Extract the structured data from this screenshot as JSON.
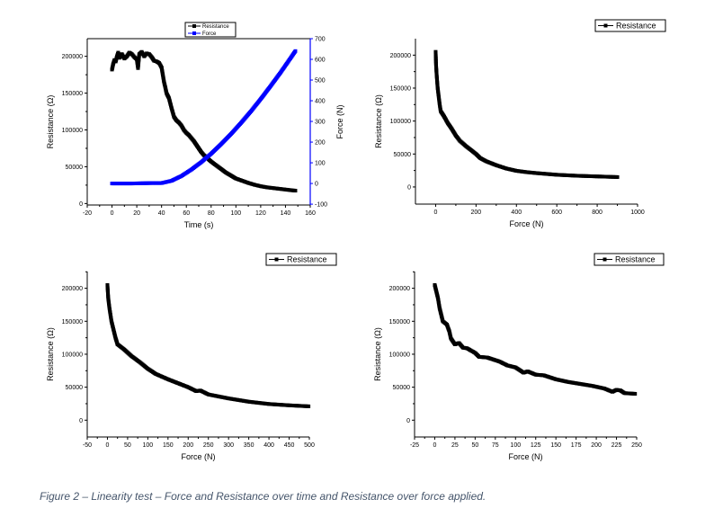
{
  "caption": "Figure 2 – Linearity test – Force and Resistance over time and Resistance over force applied.",
  "chart_data": [
    {
      "type": "line",
      "xlabel": "Time (s)",
      "ylabel": "Resistance (Ω)",
      "y2label": "Force (N)",
      "xlim": [
        -20,
        160
      ],
      "ylim": [
        -2000,
        224000
      ],
      "y2lim": [
        -104,
        700
      ],
      "xticks": [
        "-20",
        "0",
        "20",
        "40",
        "60",
        "80",
        "100",
        "120",
        "140",
        "160"
      ],
      "yticks": [
        "0",
        "50000",
        "100000",
        "150000",
        "200000"
      ],
      "y2ticks": [
        "-100",
        "0",
        "100",
        "200",
        "300",
        "400",
        "500",
        "600",
        "700"
      ],
      "legend": "top-center",
      "grid": false,
      "series": [
        {
          "name": "Resistance",
          "axis": "left",
          "color": "#000000",
          "x": [
            0,
            1,
            2,
            3,
            4,
            5,
            6,
            8,
            10,
            12,
            14,
            16,
            18,
            20,
            21,
            22,
            24,
            26,
            28,
            30,
            32,
            34,
            36,
            38,
            40,
            41,
            42,
            43,
            44,
            46,
            48,
            50,
            52,
            54,
            56,
            58,
            60,
            62,
            64,
            66,
            68,
            70,
            72,
            74,
            76,
            78,
            80,
            84,
            88,
            92,
            96,
            100,
            105,
            110,
            115,
            120,
            125,
            130,
            135,
            140,
            145,
            148
          ],
          "y": [
            182000,
            190000,
            195000,
            193000,
            200000,
            205000,
            198000,
            203000,
            197000,
            200000,
            205000,
            203000,
            199000,
            196000,
            184000,
            203000,
            206000,
            200000,
            204000,
            203000,
            199000,
            194000,
            193000,
            191000,
            185000,
            175000,
            165000,
            158000,
            150000,
            143000,
            130000,
            118000,
            113000,
            110000,
            106000,
            100000,
            96000,
            93000,
            89000,
            85000,
            80000,
            75000,
            70000,
            66000,
            63000,
            60000,
            57000,
            52000,
            47000,
            42000,
            38000,
            34000,
            31000,
            28000,
            25500,
            23500,
            22000,
            21000,
            20000,
            19000,
            18000,
            17500
          ]
        },
        {
          "name": "Force",
          "axis": "right",
          "color": "#0000ff",
          "x": [
            0,
            8,
            16,
            24,
            32,
            40,
            48,
            56,
            64,
            72,
            80,
            88,
            96,
            104,
            112,
            120,
            128,
            136,
            144,
            148
          ],
          "y": [
            0,
            0,
            0,
            1,
            2,
            2,
            13,
            36,
            67,
            103,
            144,
            190,
            239,
            292,
            348,
            408,
            471,
            536,
            605,
            640
          ]
        }
      ]
    },
    {
      "type": "line",
      "xlabel": "Force (N)",
      "ylabel": "Resistance (Ω)",
      "xlim": [
        -100,
        1000
      ],
      "ylim": [
        -26000,
        225000
      ],
      "xticks": [
        "0",
        "200",
        "400",
        "600",
        "800",
        "1000"
      ],
      "yticks": [
        "0",
        "50000",
        "100000",
        "150000",
        "200000"
      ],
      "legend": "top-right",
      "grid": false,
      "series": [
        {
          "name": "Resistance",
          "color": "#000000",
          "x": [
            0,
            1,
            2,
            5,
            10,
            20,
            25,
            40,
            60,
            80,
            100,
            120,
            150,
            200,
            220,
            250,
            300,
            350,
            400,
            450,
            500,
            600,
            700,
            800,
            900
          ],
          "y": [
            205000,
            195000,
            185000,
            170000,
            150000,
            125000,
            115000,
            108000,
            97000,
            88000,
            78000,
            70000,
            62000,
            50000,
            44000,
            39000,
            33000,
            28000,
            24500,
            22500,
            21000,
            18500,
            17000,
            16000,
            15000
          ]
        }
      ]
    },
    {
      "type": "line",
      "xlabel": "Force (N)",
      "ylabel": "Resistance (Ω)",
      "xlim": [
        -50,
        500
      ],
      "ylim": [
        -25500,
        225400
      ],
      "xticks": [
        "-50",
        "0",
        "50",
        "100",
        "150",
        "200",
        "250",
        "300",
        "350",
        "400",
        "450",
        "500"
      ],
      "yticks": [
        "0",
        "50000",
        "100000",
        "150000",
        "200000"
      ],
      "legend": "top-right",
      "grid": false,
      "series": [
        {
          "name": "Resistance",
          "color": "#000000",
          "x": [
            0,
            1,
            2,
            5,
            10,
            20,
            25,
            40,
            60,
            80,
            100,
            120,
            150,
            200,
            220,
            230,
            250,
            300,
            350,
            400,
            450,
            498
          ],
          "y": [
            205000,
            195000,
            185000,
            170000,
            150000,
            125000,
            115000,
            108000,
            97000,
            88000,
            78000,
            70000,
            62000,
            50000,
            44000,
            45000,
            39000,
            33000,
            28000,
            24500,
            22500,
            21000
          ]
        }
      ]
    },
    {
      "type": "line",
      "xlabel": "Force (N)",
      "ylabel": "Resistance (Ω)",
      "xlim": [
        -25,
        250
      ],
      "ylim": [
        -25500,
        225400
      ],
      "xticks": [
        "-25",
        "0",
        "25",
        "50",
        "75",
        "100",
        "125",
        "150",
        "175",
        "200",
        "225",
        "250"
      ],
      "yticks": [
        "0",
        "50000",
        "100000",
        "150000",
        "200000"
      ],
      "legend": "top-right",
      "grid": false,
      "series": [
        {
          "name": "Resistance",
          "color": "#000000",
          "x": [
            0,
            2,
            4,
            6,
            10,
            15,
            18,
            20,
            25,
            30,
            35,
            40,
            50,
            55,
            65,
            70,
            80,
            90,
            100,
            110,
            115,
            125,
            135,
            150,
            165,
            180,
            195,
            210,
            220,
            225,
            230,
            235,
            248
          ],
          "y": [
            205000,
            195000,
            185000,
            170000,
            150000,
            145000,
            135000,
            124000,
            115000,
            117000,
            110000,
            109000,
            102000,
            96000,
            95000,
            93000,
            89000,
            83000,
            80000,
            72000,
            74000,
            69000,
            68000,
            62000,
            58000,
            55000,
            52000,
            48000,
            43000,
            46000,
            45000,
            41000,
            40000
          ]
        }
      ]
    }
  ]
}
